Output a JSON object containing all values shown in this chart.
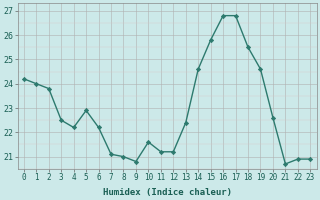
{
  "x": [
    0,
    1,
    2,
    3,
    4,
    5,
    6,
    7,
    8,
    9,
    10,
    11,
    12,
    13,
    14,
    15,
    16,
    17,
    18,
    19,
    20,
    21,
    22,
    23
  ],
  "y": [
    24.2,
    24.0,
    23.8,
    22.5,
    22.2,
    22.9,
    22.2,
    21.1,
    21.0,
    20.8,
    21.6,
    21.2,
    21.2,
    22.4,
    24.6,
    25.8,
    26.8,
    26.8,
    25.5,
    24.6,
    22.6,
    20.7,
    20.9,
    20.9
  ],
  "xlabel": "Humidex (Indice chaleur)",
  "ylim": [
    20.5,
    27.3
  ],
  "xlim": [
    -0.5,
    23.5
  ],
  "yticks": [
    21,
    22,
    23,
    24,
    25,
    26,
    27
  ],
  "xtick_labels": [
    "0",
    "1",
    "2",
    "3",
    "4",
    "5",
    "6",
    "7",
    "8",
    "9",
    "10",
    "11",
    "12",
    "13",
    "14",
    "15",
    "16",
    "17",
    "18",
    "19",
    "20",
    "21",
    "22",
    "23"
  ],
  "line_color": "#2d7a6e",
  "marker": "D",
  "marker_size": 2.2,
  "bg_color": "#cce9e9",
  "grid_major_color": "#b0b0b0",
  "grid_minor_color": "#d8c8c8",
  "font_color": "#1a5f54",
  "xlabel_fontsize": 6.5,
  "tick_fontsize": 5.5,
  "ytick_fontsize": 6.0,
  "linewidth": 1.0
}
